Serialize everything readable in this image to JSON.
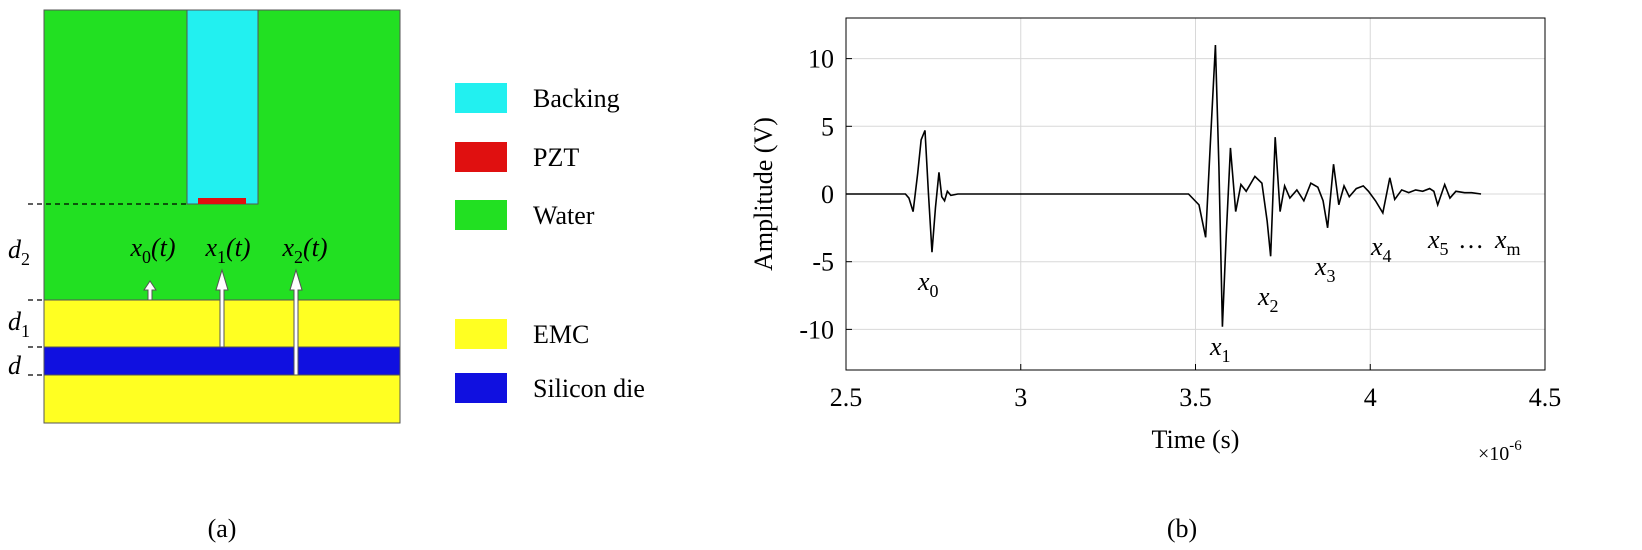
{
  "diagram": {
    "caption": "(a)",
    "legend": [
      "Backing",
      "PZT",
      "Water",
      "EMC",
      "Silicon die"
    ],
    "thickness_labels": [
      {
        "base": "d",
        "sub": "2"
      },
      {
        "base": "d",
        "sub": "1"
      },
      {
        "base": "d"
      }
    ],
    "signal_labels": [
      {
        "base": "x",
        "sub": "0",
        "arg": "(t)"
      },
      {
        "base": "x",
        "sub": "1",
        "arg": "(t)"
      },
      {
        "base": "x",
        "sub": "2",
        "arg": "(t)"
      }
    ]
  },
  "chart_data": {
    "type": "line",
    "caption": "(b)",
    "xlabel": "Time (s)",
    "ylabel": "Amplitude (V)",
    "x_multiplier": {
      "base": "×10",
      "exp": "-6"
    },
    "color": "#000000",
    "grid": true,
    "xlim": [
      2.5,
      4.5
    ],
    "xticks": [
      2.5,
      3,
      3.5,
      4,
      4.5
    ],
    "ylim": [
      -13,
      13
    ],
    "yticks": [
      -10,
      -5,
      0,
      5,
      10
    ],
    "x": [
      2.5,
      2.6,
      2.67,
      2.68,
      2.692,
      2.705,
      2.715,
      2.726,
      2.736,
      2.746,
      2.756,
      2.766,
      2.774,
      2.782,
      2.79,
      2.8,
      2.82,
      3.0,
      3.3,
      3.48,
      3.51,
      3.529,
      3.543,
      3.557,
      3.567,
      3.577,
      3.588,
      3.6,
      3.615,
      3.63,
      3.645,
      3.67,
      3.69,
      3.705,
      3.715,
      3.728,
      3.742,
      3.755,
      3.77,
      3.79,
      3.81,
      3.83,
      3.85,
      3.865,
      3.878,
      3.895,
      3.91,
      3.925,
      3.94,
      3.96,
      3.98,
      3.995,
      4.015,
      4.036,
      4.056,
      4.07,
      4.09,
      4.11,
      4.13,
      4.15,
      4.17,
      4.182,
      4.193,
      4.213,
      4.228,
      4.245,
      4.27,
      4.29,
      4.317
    ],
    "values": [
      0,
      0,
      0,
      -0.3,
      -1.3,
      1.5,
      4.0,
      4.7,
      0,
      -4.3,
      -1.0,
      1.6,
      -0.2,
      -0.5,
      0.2,
      -0.1,
      0,
      0,
      0,
      0,
      -0.8,
      -3.2,
      4,
      11,
      2,
      -9.8,
      -3,
      3.4,
      -1.3,
      0.7,
      0.2,
      1.3,
      0.8,
      -2.0,
      -4.6,
      4.2,
      -1.3,
      0.6,
      -0.3,
      0.3,
      -0.5,
      0.8,
      0.5,
      -0.5,
      -2.5,
      2.2,
      -0.8,
      0.6,
      -0.2,
      0.4,
      0.6,
      0.2,
      -0.5,
      -1.4,
      1.2,
      -0.4,
      0.3,
      0.1,
      0.3,
      0.2,
      0.4,
      0.2,
      -0.8,
      0.7,
      -0.3,
      0.2,
      0.1,
      0.1,
      0
    ],
    "annotations": [
      {
        "base": "x",
        "sub": "0"
      },
      {
        "base": "x",
        "sub": "1"
      },
      {
        "base": "x",
        "sub": "2"
      },
      {
        "base": "x",
        "sub": "3"
      },
      {
        "base": "x",
        "sub": "4"
      },
      {
        "base": "x",
        "sub": "5"
      },
      {
        "base": "…"
      },
      {
        "base": "x",
        "sub": "m"
      }
    ]
  }
}
